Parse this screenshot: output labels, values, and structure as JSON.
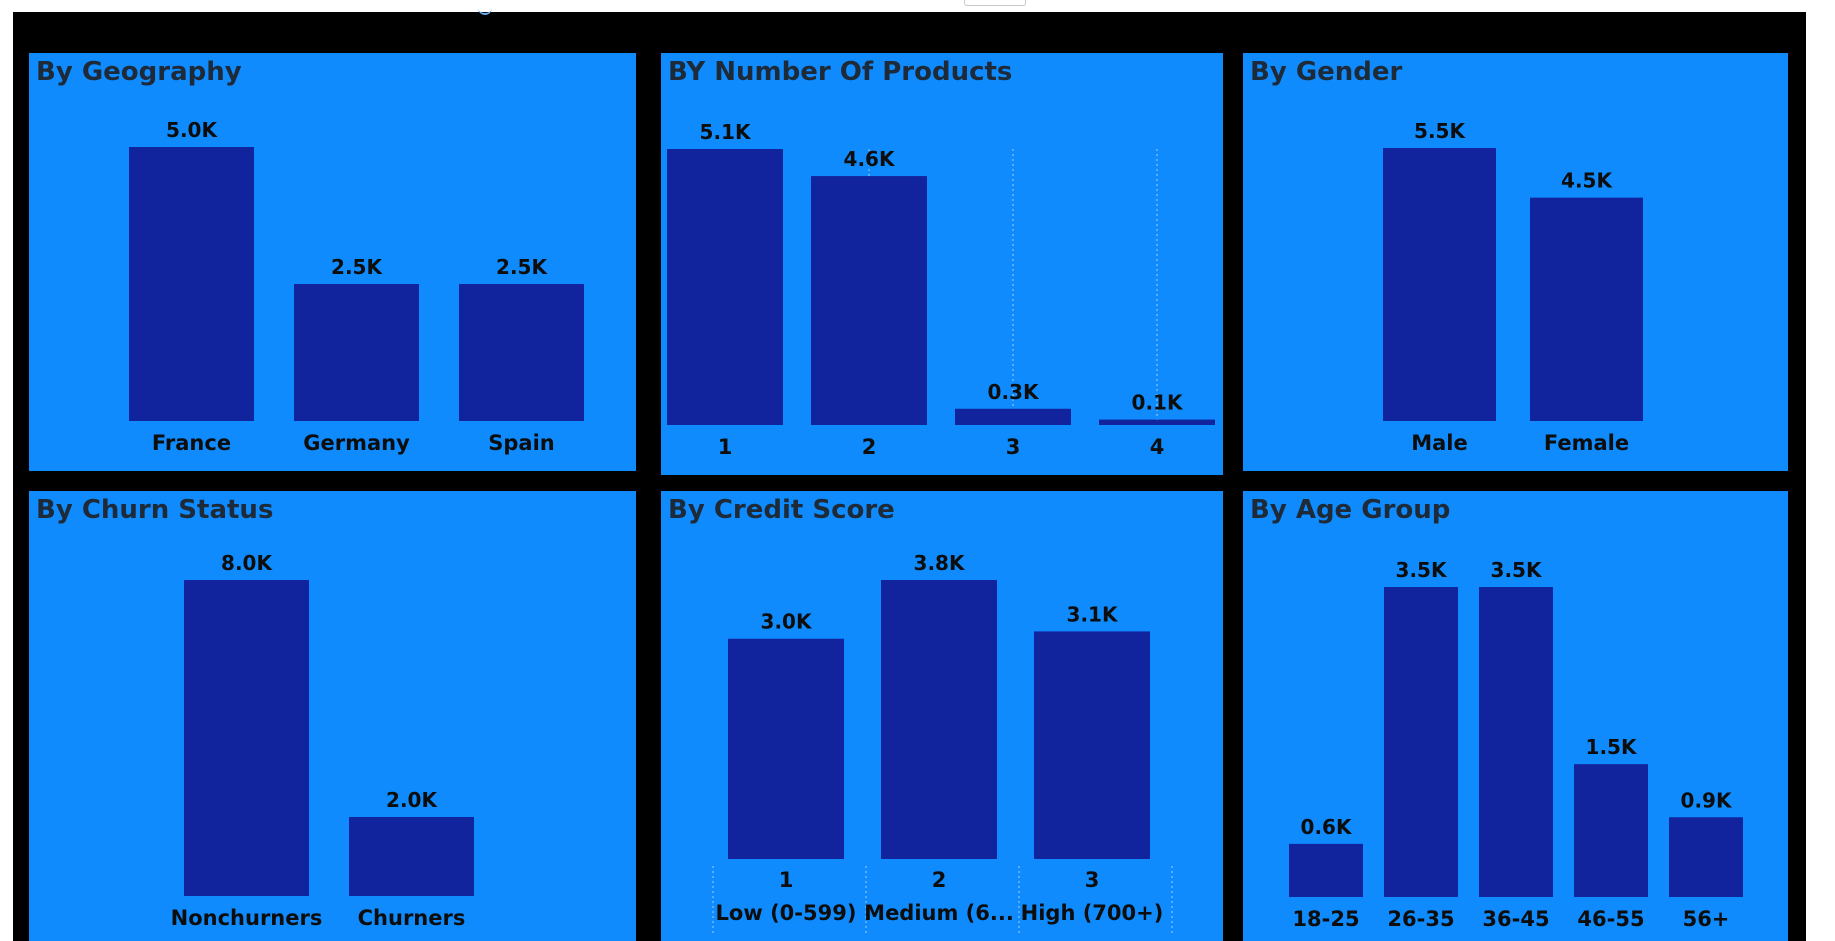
{
  "colors": {
    "panel_bg": "#0f8bfd",
    "bar": "#12239e",
    "canvas": "#000000",
    "text": "#0d0d0d",
    "title": "#1e2a38"
  },
  "charts": [
    {
      "type": "bar",
      "title": "By Geography",
      "chart_data": {
        "type": "bar",
        "categories": [
          "France",
          "Germany",
          "Spain"
        ],
        "values": [
          5.0,
          2.5,
          2.5
        ],
        "labels": [
          "5.0K",
          "2.5K",
          "2.5K"
        ],
        "unit": "K",
        "ylim": [
          0,
          5.0
        ]
      }
    },
    {
      "type": "bar",
      "title": "BY Number Of Products",
      "chart_data": {
        "type": "bar",
        "categories": [
          "1",
          "2",
          "3",
          "4"
        ],
        "values": [
          5.1,
          4.6,
          0.3,
          0.1
        ],
        "labels": [
          "5.1K",
          "4.6K",
          "0.3K",
          "0.1K"
        ],
        "unit": "K",
        "ylim": [
          0,
          5.1
        ],
        "grid": "vertical-dotted"
      }
    },
    {
      "type": "bar",
      "title": "By Gender",
      "chart_data": {
        "type": "bar",
        "categories": [
          "Male",
          "Female"
        ],
        "values": [
          5.5,
          4.5
        ],
        "labels": [
          "5.5K",
          "4.5K"
        ],
        "unit": "K",
        "ylim": [
          0,
          5.5
        ]
      }
    },
    {
      "type": "bar",
      "title": "By Churn Status",
      "chart_data": {
        "type": "bar",
        "categories": [
          "Nonchurners",
          "Churners"
        ],
        "values": [
          8.0,
          2.0
        ],
        "labels": [
          "8.0K",
          "2.0K"
        ],
        "unit": "K",
        "ylim": [
          0,
          8.0
        ]
      }
    },
    {
      "type": "bar",
      "title": "By Credit Score",
      "chart_data": {
        "type": "bar",
        "categories": [
          "1",
          "2",
          "3"
        ],
        "subcategories": [
          "Low (0-599)",
          "Medium (6...",
          "High (700+)"
        ],
        "values": [
          3.0,
          3.8,
          3.1
        ],
        "labels": [
          "3.0K",
          "3.8K",
          "3.1K"
        ],
        "unit": "K",
        "ylim": [
          0,
          3.8
        ],
        "grid": "category-separators"
      }
    },
    {
      "type": "bar",
      "title": "By Age Group",
      "chart_data": {
        "type": "bar",
        "categories": [
          "18-25",
          "26-35",
          "36-45",
          "46-55",
          "56+"
        ],
        "values": [
          0.6,
          3.5,
          3.5,
          1.5,
          0.9
        ],
        "labels": [
          "0.6K",
          "3.5K",
          "3.5K",
          "1.5K",
          "0.9K"
        ],
        "unit": "K",
        "ylim": [
          0,
          3.5
        ]
      }
    }
  ]
}
